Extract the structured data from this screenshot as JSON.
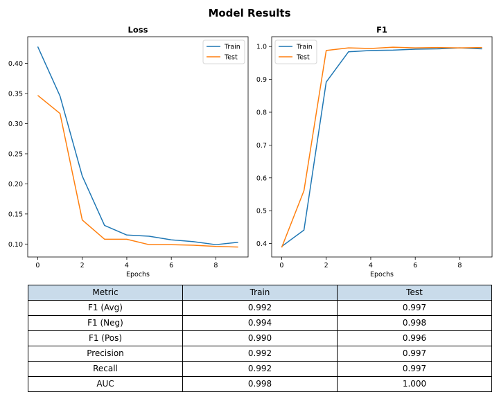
{
  "figure": {
    "title": "Model Results"
  },
  "chart_data": [
    {
      "type": "line",
      "title": "Loss",
      "xlabel": "Epochs",
      "ylabel": "",
      "x": [
        0,
        1,
        2,
        3,
        4,
        5,
        6,
        7,
        8,
        9
      ],
      "xlim": [
        -0.45,
        9.45
      ],
      "ylim": [
        0.0785,
        0.4445
      ],
      "xticks": [
        0,
        2,
        4,
        6,
        8
      ],
      "yticks": [
        0.1,
        0.15,
        0.2,
        0.25,
        0.3,
        0.35,
        0.4
      ],
      "ytick_format": 2,
      "legend": "upper right",
      "series": [
        {
          "name": "Train",
          "color": "#1f77b4",
          "values": [
            0.428,
            0.346,
            0.213,
            0.131,
            0.115,
            0.113,
            0.107,
            0.104,
            0.099,
            0.103
          ]
        },
        {
          "name": "Test",
          "color": "#ff7f0e",
          "values": [
            0.347,
            0.317,
            0.14,
            0.108,
            0.108,
            0.099,
            0.099,
            0.098,
            0.096,
            0.095
          ]
        }
      ]
    },
    {
      "type": "line",
      "title": "F1",
      "xlabel": "Epochs",
      "ylabel": "",
      "x": [
        0,
        1,
        2,
        3,
        4,
        5,
        6,
        7,
        8,
        9
      ],
      "xlim": [
        -0.45,
        9.45
      ],
      "ylim": [
        0.359,
        1.03
      ],
      "xticks": [
        0,
        2,
        4,
        6,
        8
      ],
      "yticks": [
        0.4,
        0.5,
        0.6,
        0.7,
        0.8,
        0.9,
        1.0
      ],
      "ytick_format": 1,
      "legend": "upper left",
      "series": [
        {
          "name": "Train",
          "color": "#1f77b4",
          "values": [
            0.391,
            0.441,
            0.892,
            0.984,
            0.988,
            0.989,
            0.992,
            0.993,
            0.996,
            0.993
          ]
        },
        {
          "name": "Test",
          "color": "#ff7f0e",
          "values": [
            0.388,
            0.561,
            0.988,
            0.996,
            0.994,
            0.998,
            0.996,
            0.997,
            0.996,
            0.997
          ]
        }
      ]
    }
  ],
  "table": {
    "headers": [
      "Metric",
      "Train",
      "Test"
    ],
    "rows": [
      [
        "F1 (Avg)",
        "0.992",
        "0.997"
      ],
      [
        "F1 (Neg)",
        "0.994",
        "0.998"
      ],
      [
        "F1 (Pos)",
        "0.990",
        "0.996"
      ],
      [
        "Precision",
        "0.992",
        "0.997"
      ],
      [
        "Recall",
        "0.992",
        "0.997"
      ],
      [
        "AUC",
        "0.998",
        "1.000"
      ]
    ]
  }
}
